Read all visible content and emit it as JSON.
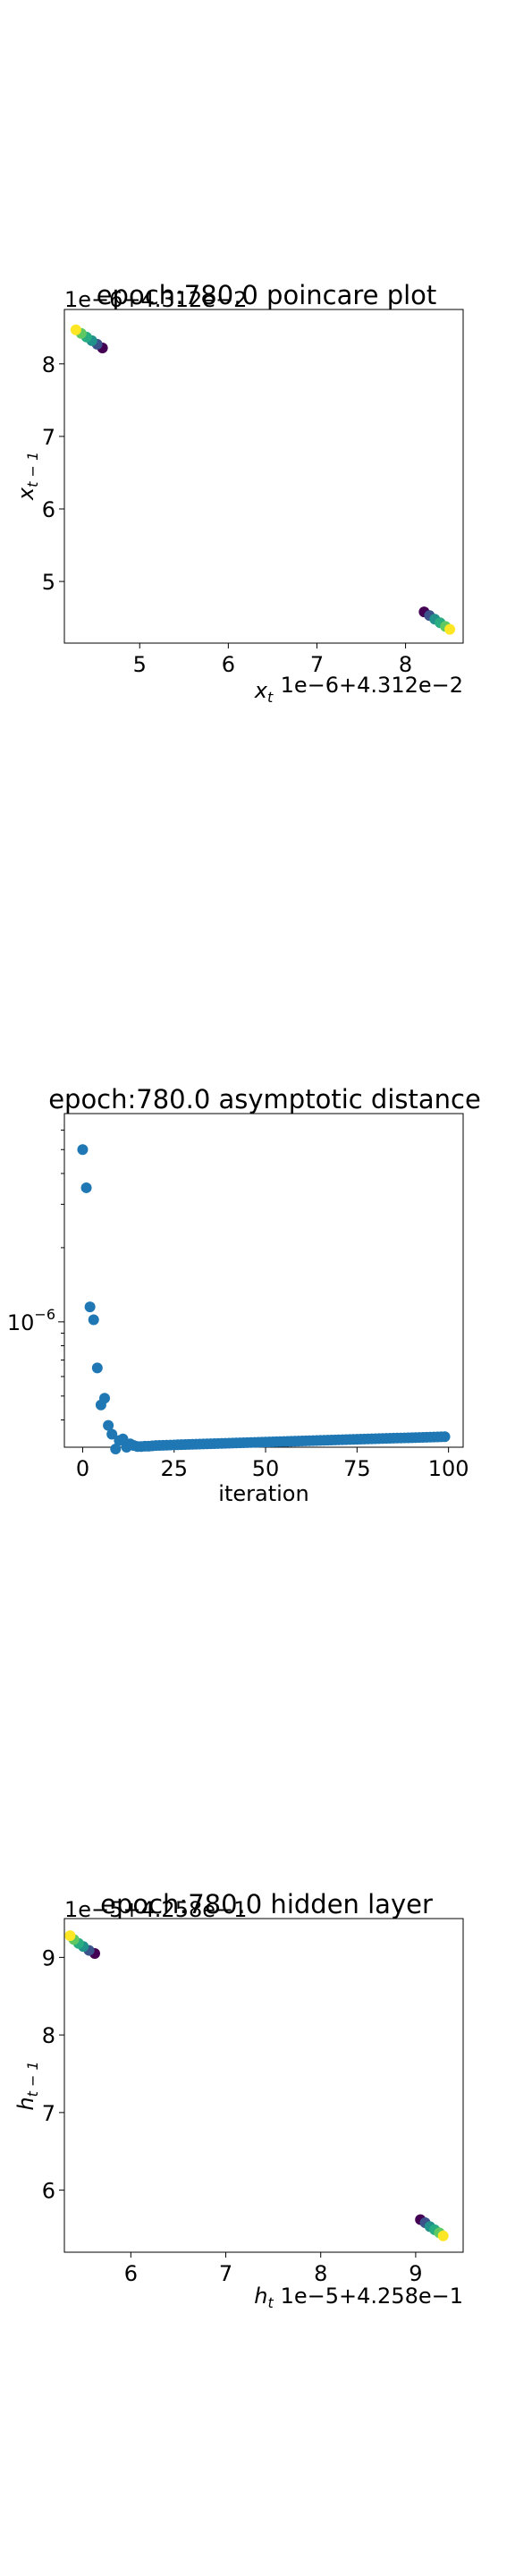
{
  "chart_data": [
    {
      "type": "scatter",
      "title": "epoch:780.0 poincare plot",
      "xlabel": "x_t",
      "ylabel": "x_{t-1}",
      "offset_text_x": "1e−6+4.312e−2",
      "offset_text_y": "1e−6+4.312e−2",
      "xlim": [
        4.15,
        8.65
      ],
      "ylim": [
        4.15,
        8.75
      ],
      "xticks": [
        5,
        6,
        7,
        8
      ],
      "yticks": [
        5,
        6,
        7,
        8
      ],
      "colormap": "viridis",
      "series": [
        {
          "x": [
            4.58,
            4.52,
            4.46,
            4.4,
            4.34,
            4.28
          ],
          "y": [
            8.22,
            8.27,
            8.32,
            8.37,
            8.42,
            8.47
          ]
        },
        {
          "x": [
            8.21,
            8.27,
            8.33,
            8.39,
            8.45,
            8.5
          ],
          "y": [
            4.58,
            4.53,
            4.48,
            4.43,
            4.38,
            4.34
          ]
        }
      ]
    },
    {
      "type": "scatter",
      "title": "epoch:780.0 asymptotic distance",
      "xlabel": "iteration",
      "ylabel": "",
      "ytick_label": "10^−6",
      "xticks": [
        0,
        25,
        50,
        75,
        100
      ],
      "xlim": [
        -5,
        104
      ],
      "ylim": [
        3.1e-07,
        7e-06
      ],
      "yscale": "log",
      "color": "#1f77b4",
      "points_head": [
        [
          0,
          5e-06
        ],
        [
          1,
          3.5e-06
        ],
        [
          2,
          1.15e-06
        ],
        [
          3,
          1.02e-06
        ],
        [
          4,
          6.5e-07
        ],
        [
          5,
          4.6e-07
        ],
        [
          6,
          4.9e-07
        ],
        [
          7,
          3.8e-07
        ],
        [
          8,
          3.5e-07
        ],
        [
          9,
          3.05e-07
        ],
        [
          10,
          3.3e-07
        ],
        [
          11,
          3.35e-07
        ],
        [
          12,
          3.1e-07
        ],
        [
          13,
          3.2e-07
        ],
        [
          14,
          3.15e-07
        ],
        [
          15,
          3.12e-07
        ],
        [
          16,
          3.12e-07
        ],
        [
          17,
          3.13e-07
        ],
        [
          18,
          3.13e-07
        ],
        [
          19,
          3.14e-07
        ]
      ],
      "tail": {
        "x_start": 20,
        "x_end": 99,
        "y_start": 3.15e-07,
        "y_end": 3.42e-07
      }
    },
    {
      "type": "scatter",
      "title": "epoch:780.0 hidden layer",
      "xlabel": "h_t",
      "ylabel": "h_{t-1}",
      "offset_text_x": "1e−5+4.258e−1",
      "offset_text_y": "1e−5+4.258e−1",
      "xlim": [
        5.3,
        9.5
      ],
      "ylim": [
        5.2,
        9.5
      ],
      "xticks": [
        6,
        7,
        8,
        9
      ],
      "yticks": [
        6,
        7,
        8,
        9
      ],
      "colormap": "viridis",
      "series": [
        {
          "x": [
            5.62,
            5.56,
            5.5,
            5.45,
            5.4,
            5.36
          ],
          "y": [
            9.05,
            9.09,
            9.14,
            9.18,
            9.23,
            9.28
          ]
        },
        {
          "x": [
            9.05,
            9.1,
            9.15,
            9.2,
            9.25,
            9.29
          ],
          "y": [
            5.62,
            5.58,
            5.53,
            5.49,
            5.45,
            5.41
          ]
        }
      ]
    }
  ]
}
